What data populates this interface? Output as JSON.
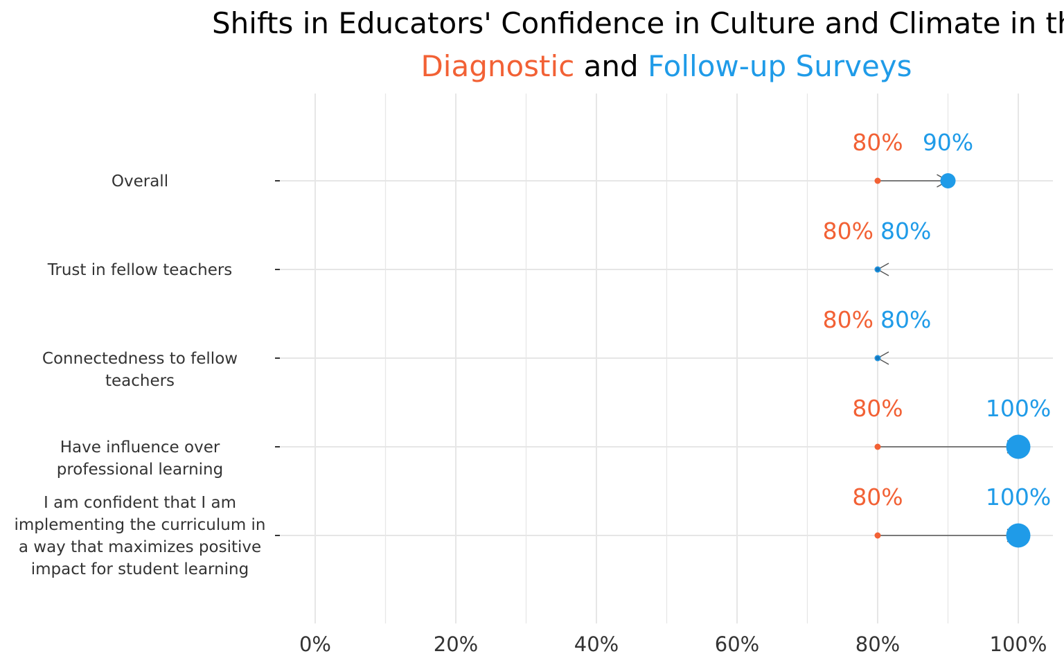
{
  "chart_data": {
    "type": "dumbbell",
    "title_line1": "Shifts in Educators' Confidence in Culture and Climate in the",
    "title_line2": {
      "diagnostic": "Diagnostic",
      "and": " and ",
      "followup": "Follow-up Surveys"
    },
    "colors": {
      "diagnostic": "#f26135",
      "followup": "#1f9be8",
      "arrow": "#555555",
      "grid": "#e6e6e6",
      "text": "#333333"
    },
    "series": [
      {
        "name": "Diagnostic"
      },
      {
        "name": "Follow-up Surveys"
      }
    ],
    "categories": [
      {
        "lines": [
          "Overall"
        ],
        "diagnostic": 80,
        "followup": 90
      },
      {
        "lines": [
          "Trust in fellow teachers"
        ],
        "diagnostic": 80,
        "followup": 80
      },
      {
        "lines": [
          "Connectedness to fellow",
          "teachers"
        ],
        "diagnostic": 80,
        "followup": 80
      },
      {
        "lines": [
          "Have influence over",
          "professional learning"
        ],
        "diagnostic": 80,
        "followup": 100
      },
      {
        "lines": [
          "I am confident that I am",
          "implementing the curriculum in",
          "a way that maximizes positive",
          "impact for student learning"
        ],
        "diagnostic": 80,
        "followup": 100
      }
    ],
    "x_ticks": [
      0,
      20,
      40,
      60,
      80,
      100
    ],
    "x_tick_labels": [
      "0%",
      "20%",
      "40%",
      "60%",
      "80%",
      "100%"
    ],
    "xlim": [
      0,
      100
    ],
    "value_suffix": "%",
    "grid": true
  }
}
